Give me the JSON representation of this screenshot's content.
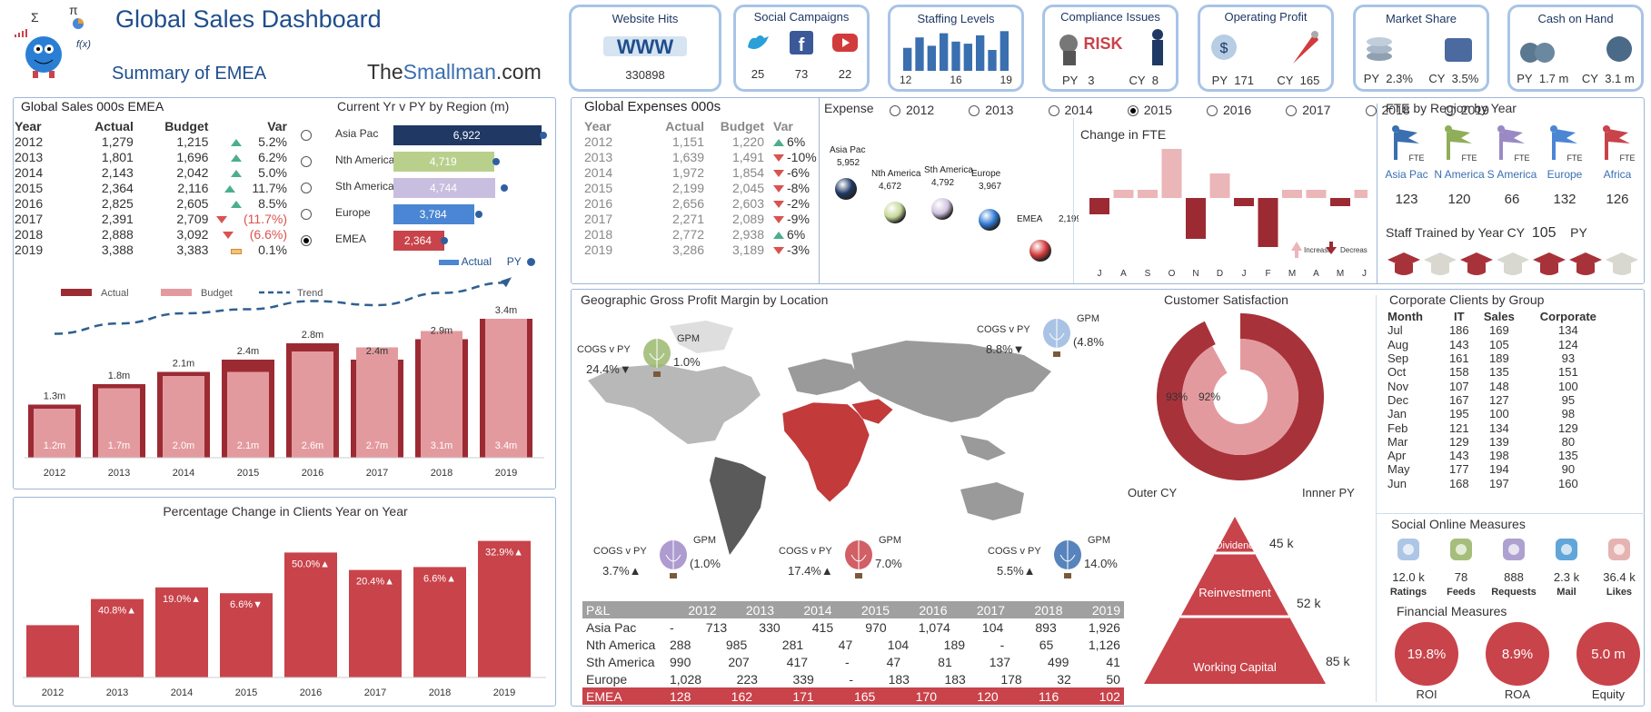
{
  "header": {
    "title": "Global Sales Dashboard",
    "subtitle": "Summary of EMEA",
    "brand_a": "The",
    "brand_b": "Smallman",
    ".com": "",
    "brand_c": ".com",
    "formula": "f(x)"
  },
  "kpis": [
    {
      "title": "Website Hits",
      "value": "330898"
    },
    {
      "title": "Social Campaigns",
      "vals": [
        "25",
        "73",
        "22"
      ]
    },
    {
      "title": "Staffing Levels",
      "vals": [
        "12",
        "16",
        "19"
      ]
    },
    {
      "title": "Compliance Issues",
      "py_label": "PY",
      "py": "3",
      "cy_label": "CY",
      "cy": "8"
    },
    {
      "title": "Operating Profit",
      "py_label": "PY",
      "py": "171",
      "cy_label": "CY",
      "cy": "165"
    },
    {
      "title": "Market Share",
      "py_label": "PY",
      "py": "2.3%",
      "cy_label": "CY",
      "cy": "3.5%"
    },
    {
      "title": "Cash on Hand",
      "py_label": "PY",
      "py": "1.7 m",
      "cy_label": "CY",
      "cy": "3.1 m"
    }
  ],
  "staffing_bars": [
    0.55,
    0.8,
    0.6,
    0.9,
    0.7,
    0.65,
    0.85,
    0.5,
    0.95
  ],
  "sales": {
    "title": "Global Sales 000s EMEA",
    "headers": [
      "Year",
      "Actual",
      "Budget",
      "Var"
    ],
    "rows": [
      [
        "2012",
        "1,279",
        "1,215",
        "up",
        "5.2%"
      ],
      [
        "2013",
        "1,801",
        "1,696",
        "up",
        "6.2%"
      ],
      [
        "2014",
        "2,143",
        "2,042",
        "up",
        "5.0%"
      ],
      [
        "2015",
        "2,364",
        "2,116",
        "up",
        "11.7%"
      ],
      [
        "2016",
        "2,825",
        "2,605",
        "up",
        "8.5%"
      ],
      [
        "2017",
        "2,391",
        "2,709",
        "down",
        "(11.7%)"
      ],
      [
        "2018",
        "2,888",
        "3,092",
        "down",
        "(6.6%)"
      ],
      [
        "2019",
        "3,388",
        "3,383",
        "flat",
        "0.1%"
      ]
    ]
  },
  "region": {
    "title": "Current Yr v PY by Region (m)",
    "legend_actual": "Actual",
    "legend_py": "PY",
    "items": [
      {
        "name": "Asia Pac",
        "value": 6922,
        "label": "6,922",
        "color": "#1f3864",
        "py": 6922
      },
      {
        "name": "Nth America",
        "value": 4719,
        "label": "4,719",
        "color": "#b8d08c",
        "py": 4680
      },
      {
        "name": "Sth America",
        "value": 4744,
        "label": "4,744",
        "color": "#c8bedf",
        "py": 5100
      },
      {
        "name": "Europe",
        "value": 3784,
        "label": "3,784",
        "color": "#4a86d4",
        "py": 3900
      },
      {
        "name": "EMEA",
        "value": 2364,
        "label": "2,364",
        "color": "#c9434a",
        "py": 2300
      }
    ],
    "selected": 4
  },
  "chart_data": [
    {
      "type": "bar",
      "id": "sales_trend",
      "title": "",
      "categories": [
        "2012",
        "2013",
        "2014",
        "2015",
        "2016",
        "2017",
        "2018",
        "2019"
      ],
      "series": [
        {
          "name": "Actual",
          "values": [
            1.3,
            1.8,
            2.1,
            2.4,
            2.8,
            2.4,
            2.9,
            3.4
          ],
          "labels": [
            "1.3m",
            "1.8m",
            "2.1m",
            "2.4m",
            "2.8m",
            "2.4m",
            "2.9m",
            "3.4m"
          ]
        },
        {
          "name": "Budget",
          "values": [
            1.2,
            1.7,
            2.0,
            2.1,
            2.6,
            2.7,
            3.1,
            3.4
          ],
          "labels": [
            "1.2m",
            "1.7m",
            "2.0m",
            "2.1m",
            "2.6m",
            "2.7m",
            "3.1m",
            "3.4m"
          ]
        },
        {
          "name": "Trend",
          "values": [
            1.3,
            1.55,
            1.8,
            1.9,
            2.1,
            2.0,
            2.3,
            2.55
          ]
        }
      ],
      "legend": "top"
    },
    {
      "type": "bar",
      "id": "clients_change",
      "title": "Percentage Change in Clients Year on Year",
      "categories": [
        "2012",
        "2013",
        "2014",
        "2015",
        "2016",
        "2017",
        "2018",
        "2019"
      ],
      "values": [
        18,
        27,
        31,
        29,
        43,
        37,
        38,
        47
      ],
      "labels": [
        "",
        "40.8%▲",
        "19.0%▲",
        "6.6%▼",
        "50.0%▲",
        "20.4%▲",
        "6.6%▲",
        "32.9%▲"
      ]
    },
    {
      "type": "bar",
      "id": "fte_change",
      "title": "Change in FTE",
      "categories": [
        "J",
        "A",
        "S",
        "O",
        "N",
        "D",
        "J",
        "F",
        "M",
        "A",
        "M",
        "J"
      ],
      "values": [
        -2,
        1,
        1,
        6,
        -5,
        3,
        -1,
        -6,
        1,
        1,
        -1,
        1
      ],
      "legend": [
        "Increase",
        "Decrease"
      ]
    },
    {
      "type": "scatter",
      "id": "expense_bubbles",
      "title": "Expense",
      "points": [
        {
          "name": "Asia Pac",
          "value": "5,952",
          "color": "#1f3864"
        },
        {
          "name": "Nth America",
          "value": "4,672",
          "color": "#c6d89a"
        },
        {
          "name": "Sth America",
          "value": "4,792",
          "color": "#cfc3e0"
        },
        {
          "name": "Europe",
          "value": "3,967",
          "color": "#2f78d2"
        },
        {
          "name": "EMEA",
          "value": "2,199",
          "color": "#d23b3b"
        }
      ]
    },
    {
      "type": "pie",
      "id": "customer_sat",
      "title": "Customer Satisfaction",
      "outer": 93,
      "inner": 92,
      "outer_label": "93%",
      "inner_label": "92%",
      "legend_outer": "Outer CY",
      "legend_inner": "Innner  PY"
    }
  ],
  "expenses": {
    "title": "Global Expenses 000s",
    "headers": [
      "Year",
      "Actual",
      "Budget",
      "Var"
    ],
    "rows": [
      [
        "2012",
        "1,151",
        "1,220",
        "up",
        "6%"
      ],
      [
        "2013",
        "1,639",
        "1,491",
        "down",
        "-10%"
      ],
      [
        "2014",
        "1,972",
        "1,854",
        "down",
        "-6%"
      ],
      [
        "2015",
        "2,199",
        "2,045",
        "down",
        "-8%"
      ],
      [
        "2016",
        "2,656",
        "2,603",
        "down",
        "-2%"
      ],
      [
        "2017",
        "2,271",
        "2,089",
        "down",
        "-9%"
      ],
      [
        "2018",
        "2,772",
        "2,938",
        "up",
        "6%"
      ],
      [
        "2019",
        "3,286",
        "3,189",
        "down",
        "-3%"
      ]
    ]
  },
  "years": {
    "label": "Expense",
    "options": [
      "2012",
      "2013",
      "2014",
      "2015",
      "2016",
      "2017",
      "2018",
      "2019"
    ],
    "selected": "2015"
  },
  "fte": {
    "title": "FTE by Region by Year",
    "flag_label": "FTE",
    "items": [
      {
        "name": "Asia Pac",
        "value": "123",
        "color": "#3a6fb0"
      },
      {
        "name": "N America",
        "value": "120",
        "color": "#8fae5a"
      },
      {
        "name": "S America",
        "value": "66",
        "color": "#9a8ac4"
      },
      {
        "name": "Europe",
        "value": "132",
        "color": "#4a86d4"
      },
      {
        "name": "Africa",
        "value": "126",
        "color": "#c9434a"
      }
    ],
    "trained_label": "Staff Trained by Year CY",
    "trained_cy": "105",
    "trained_py": "PY"
  },
  "geo": {
    "title": "Geographic Gross Profit Margin by Location",
    "cogs": "COGS v PY",
    "gpm": "GPM",
    "balloons": [
      {
        "cogs": "24.4%▼",
        "gpm": "1.0%",
        "color": "#9bb870"
      },
      {
        "cogs": "8.8%▼",
        "gpm": "(4.8%",
        "color": "#9ab8e0"
      },
      {
        "cogs": "3.7%▲",
        "gpm": "(1.0%",
        "color": "#a08ac8"
      },
      {
        "cogs": "17.4%▲",
        "gpm": "7.0%",
        "color": "#c9434a"
      },
      {
        "cogs": "5.5%▲",
        "gpm": "14.0%",
        "color": "#3a6fb0"
      }
    ]
  },
  "pl": {
    "headers": [
      "P&L",
      "2012",
      "2013",
      "2014",
      "2015",
      "2016",
      "2017",
      "2018",
      "2019"
    ],
    "rows": [
      [
        "Asia Pac",
        "-",
        "713",
        "330",
        "415",
        "970",
        "1,074",
        "104",
        "893",
        "1,926"
      ],
      [
        "Nth America",
        "",
        "288",
        "985",
        "281",
        "47",
        "104",
        "189",
        "-",
        "65",
        "1,126"
      ],
      [
        "Sth America",
        "",
        "990",
        "207",
        "417",
        "-",
        "47",
        "81",
        "137",
        "499",
        "41"
      ],
      [
        "Europe",
        "",
        "1,028",
        "223",
        "339",
        "-",
        "183",
        "183",
        "178",
        "32",
        "50"
      ],
      [
        "EMEA",
        "",
        "128",
        "162",
        "171",
        "165",
        "170",
        "120",
        "116",
        "102"
      ]
    ]
  },
  "pyramid": {
    "levels": [
      {
        "name": "Dividend",
        "value": "45 k"
      },
      {
        "name": "Reinvestment",
        "value": "52 k"
      },
      {
        "name": "Working Capital",
        "value": "85 k"
      }
    ]
  },
  "corp": {
    "title": "Corporate Clients by Group",
    "headers": [
      "Month",
      "IT",
      "Sales",
      "Corporate"
    ],
    "rows": [
      [
        "Jul",
        "186",
        "169",
        "134"
      ],
      [
        "Aug",
        "143",
        "105",
        "124"
      ],
      [
        "Sep",
        "161",
        "189",
        "93"
      ],
      [
        "Oct",
        "158",
        "135",
        "151"
      ],
      [
        "Nov",
        "107",
        "148",
        "100"
      ],
      [
        "Dec",
        "167",
        "127",
        "95"
      ],
      [
        "Jan",
        "195",
        "100",
        "98"
      ],
      [
        "Feb",
        "121",
        "134",
        "129"
      ],
      [
        "Mar",
        "129",
        "139",
        "80"
      ],
      [
        "Apr",
        "143",
        "198",
        "135"
      ],
      [
        "May",
        "177",
        "194",
        "90"
      ],
      [
        "Jun",
        "168",
        "197",
        "160"
      ]
    ]
  },
  "social": {
    "title": "Social Online Measures",
    "items": [
      {
        "value": "12.0 k",
        "name": "Ratings",
        "color": "#9ab8e0"
      },
      {
        "value": "78",
        "name": "Feeds",
        "color": "#8fae5a"
      },
      {
        "value": "888",
        "name": "Requests",
        "color": "#9a8ac4"
      },
      {
        "value": "2.3 k",
        "name": "Mail",
        "color": "#3a8fd0"
      },
      {
        "value": "36.4 k",
        "name": "Likes",
        "color": "#e0a0a0"
      }
    ]
  },
  "financial": {
    "title": "Financial Measures",
    "items": [
      {
        "value": "19.8%",
        "name": "ROI"
      },
      {
        "value": "8.9%",
        "name": "ROA"
      },
      {
        "value": "5.0 m",
        "name": "Equity"
      }
    ]
  }
}
